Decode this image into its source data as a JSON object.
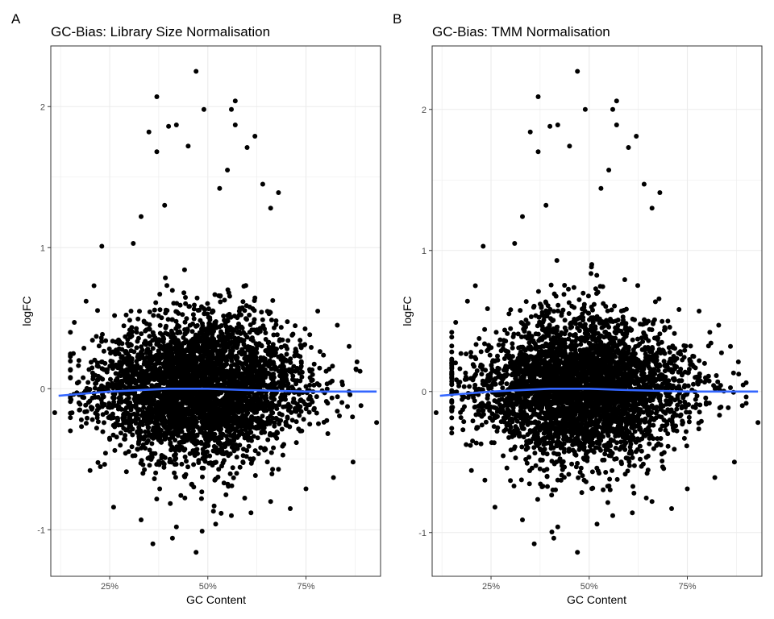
{
  "panels": [
    {
      "tag": "A",
      "title": "GC-Bias: Library Size Normalisation",
      "xlabel": "GC Content",
      "ylabel": "logFC"
    },
    {
      "tag": "B",
      "title": "GC-Bias: TMM Normalisation",
      "xlabel": "GC Content",
      "ylabel": "logFC"
    }
  ],
  "colors": {
    "points": "#000000",
    "smooth_line": "#3366FF",
    "grid": "#EBEBEB",
    "panel_border": "#333333",
    "tick_text": "#4D4D4D"
  },
  "chart_data": [
    {
      "type": "scatter",
      "title": "GC-Bias: Library Size Normalisation",
      "xlabel": "GC Content",
      "ylabel": "logFC",
      "xlim": [
        0.1,
        0.94
      ],
      "ylim": [
        -1.33,
        2.43
      ],
      "x_ticks": [
        0.25,
        0.5,
        0.75
      ],
      "x_tick_labels": [
        "25%",
        "50%",
        "75%"
      ],
      "y_ticks": [
        -1,
        0,
        1,
        2
      ],
      "y_tick_labels": [
        "-1",
        "0",
        "1",
        "2"
      ],
      "grid": true,
      "legend": "none",
      "cloud": {
        "n": 3800,
        "center_x": 0.48,
        "spread_x": 0.13,
        "center_y": 0.0,
        "spread_y": 0.26
      },
      "points": [
        [
          0.47,
          2.25
        ],
        [
          0.37,
          2.07
        ],
        [
          0.57,
          2.04
        ],
        [
          0.56,
          1.98
        ],
        [
          0.49,
          1.98
        ],
        [
          0.42,
          1.87
        ],
        [
          0.4,
          1.86
        ],
        [
          0.35,
          1.82
        ],
        [
          0.57,
          1.87
        ],
        [
          0.62,
          1.79
        ],
        [
          0.37,
          1.68
        ],
        [
          0.45,
          1.72
        ],
        [
          0.6,
          1.71
        ],
        [
          0.55,
          1.55
        ],
        [
          0.64,
          1.45
        ],
        [
          0.68,
          1.39
        ],
        [
          0.53,
          1.42
        ],
        [
          0.66,
          1.28
        ],
        [
          0.39,
          1.3
        ],
        [
          0.33,
          1.22
        ],
        [
          0.31,
          1.03
        ],
        [
          0.23,
          1.01
        ],
        [
          0.21,
          0.73
        ],
        [
          0.19,
          0.62
        ],
        [
          0.16,
          0.47
        ],
        [
          0.15,
          0.4
        ],
        [
          0.78,
          0.55
        ],
        [
          0.83,
          0.45
        ],
        [
          0.86,
          0.3
        ],
        [
          0.88,
          0.19
        ],
        [
          0.11,
          -0.17
        ],
        [
          0.93,
          -0.24
        ],
        [
          0.89,
          -0.12
        ],
        [
          0.26,
          -0.84
        ],
        [
          0.2,
          -0.58
        ],
        [
          0.36,
          -1.1
        ],
        [
          0.41,
          -1.06
        ],
        [
          0.42,
          -0.98
        ],
        [
          0.47,
          -1.16
        ],
        [
          0.52,
          -0.96
        ],
        [
          0.56,
          -0.9
        ],
        [
          0.66,
          -0.8
        ],
        [
          0.71,
          -0.85
        ],
        [
          0.82,
          -0.63
        ],
        [
          0.87,
          -0.52
        ],
        [
          0.75,
          -0.71
        ],
        [
          0.33,
          -0.93
        ],
        [
          0.61,
          -0.88
        ]
      ],
      "smooth": {
        "x": [
          0.12,
          0.25,
          0.4,
          0.5,
          0.6,
          0.75,
          0.93
        ],
        "y": [
          -0.05,
          -0.02,
          0.0,
          0.0,
          -0.01,
          -0.02,
          -0.02
        ]
      }
    },
    {
      "type": "scatter",
      "title": "GC-Bias: TMM Normalisation",
      "xlabel": "GC Content",
      "ylabel": "logFC",
      "xlim": [
        0.1,
        0.94
      ],
      "ylim": [
        -1.31,
        2.45
      ],
      "x_ticks": [
        0.25,
        0.5,
        0.75
      ],
      "x_tick_labels": [
        "25%",
        "50%",
        "75%"
      ],
      "y_ticks": [
        -1,
        0,
        1,
        2
      ],
      "y_tick_labels": [
        "-1",
        "0",
        "1",
        "2"
      ],
      "grid": true,
      "legend": "none",
      "cloud": {
        "n": 3800,
        "center_x": 0.48,
        "spread_x": 0.13,
        "center_y": 0.02,
        "spread_y": 0.26
      },
      "points": [
        [
          0.47,
          2.27
        ],
        [
          0.37,
          2.09
        ],
        [
          0.57,
          2.06
        ],
        [
          0.56,
          2.0
        ],
        [
          0.49,
          2.0
        ],
        [
          0.42,
          1.89
        ],
        [
          0.4,
          1.88
        ],
        [
          0.35,
          1.84
        ],
        [
          0.57,
          1.89
        ],
        [
          0.62,
          1.81
        ],
        [
          0.37,
          1.7
        ],
        [
          0.45,
          1.74
        ],
        [
          0.6,
          1.73
        ],
        [
          0.55,
          1.57
        ],
        [
          0.64,
          1.47
        ],
        [
          0.68,
          1.41
        ],
        [
          0.53,
          1.44
        ],
        [
          0.66,
          1.3
        ],
        [
          0.39,
          1.32
        ],
        [
          0.33,
          1.24
        ],
        [
          0.31,
          1.05
        ],
        [
          0.23,
          1.03
        ],
        [
          0.21,
          0.75
        ],
        [
          0.19,
          0.64
        ],
        [
          0.16,
          0.49
        ],
        [
          0.15,
          0.42
        ],
        [
          0.78,
          0.57
        ],
        [
          0.83,
          0.47
        ],
        [
          0.86,
          0.32
        ],
        [
          0.88,
          0.21
        ],
        [
          0.11,
          -0.15
        ],
        [
          0.93,
          -0.22
        ],
        [
          0.89,
          -0.1
        ],
        [
          0.26,
          -0.82
        ],
        [
          0.2,
          -0.56
        ],
        [
          0.36,
          -1.08
        ],
        [
          0.41,
          -1.04
        ],
        [
          0.42,
          -0.96
        ],
        [
          0.47,
          -1.14
        ],
        [
          0.52,
          -0.94
        ],
        [
          0.56,
          -0.88
        ],
        [
          0.66,
          -0.78
        ],
        [
          0.71,
          -0.83
        ],
        [
          0.82,
          -0.61
        ],
        [
          0.87,
          -0.5
        ],
        [
          0.75,
          -0.69
        ],
        [
          0.33,
          -0.91
        ],
        [
          0.61,
          -0.86
        ]
      ],
      "smooth": {
        "x": [
          0.12,
          0.25,
          0.4,
          0.5,
          0.6,
          0.75,
          0.93
        ],
        "y": [
          -0.03,
          0.0,
          0.02,
          0.02,
          0.01,
          0.0,
          0.0
        ]
      }
    }
  ]
}
